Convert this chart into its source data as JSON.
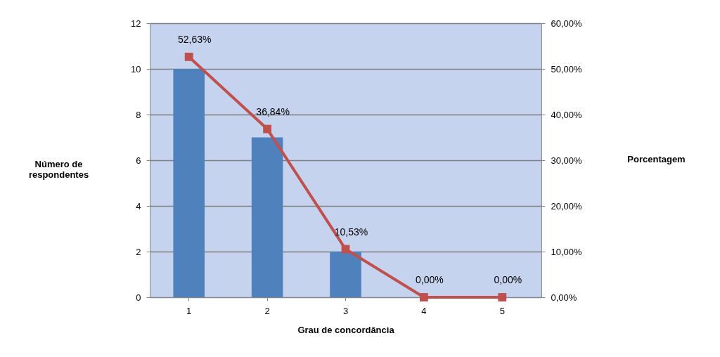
{
  "chart_data": {
    "type": "bar",
    "categories": [
      "1",
      "2",
      "3",
      "4",
      "5"
    ],
    "xlabel": "Grau de concordância",
    "ylabel": "Número de respondentes",
    "y2label": "Porcentagem",
    "series": [
      {
        "color": "#4f81bd",
        "values": [
          10,
          7,
          2,
          0,
          0
        ]
      },
      {
        "type": "line",
        "axis": "y2",
        "color": "#c0504d",
        "marker": "square",
        "values": [
          52.63,
          36.84,
          10.53,
          0,
          0
        ],
        "value_labels": [
          "52,63%",
          "36,84%",
          "10,53%",
          "0,00%",
          "0,00%"
        ]
      }
    ],
    "ylim": [
      0,
      12
    ],
    "yticks": [
      0,
      2,
      4,
      6,
      8,
      10,
      12
    ],
    "y2lim": [
      0,
      60
    ],
    "y2ticks": [
      {
        "value": 0,
        "label": "0,00%"
      },
      {
        "value": 10,
        "label": "10,00%"
      },
      {
        "value": 20,
        "label": "20,00%"
      },
      {
        "value": 30,
        "label": "30,00%"
      },
      {
        "value": 40,
        "label": "40,00%"
      },
      {
        "value": 50,
        "label": "50,00%"
      },
      {
        "value": 60,
        "label": "60,00%"
      }
    ],
    "grid": "y"
  }
}
